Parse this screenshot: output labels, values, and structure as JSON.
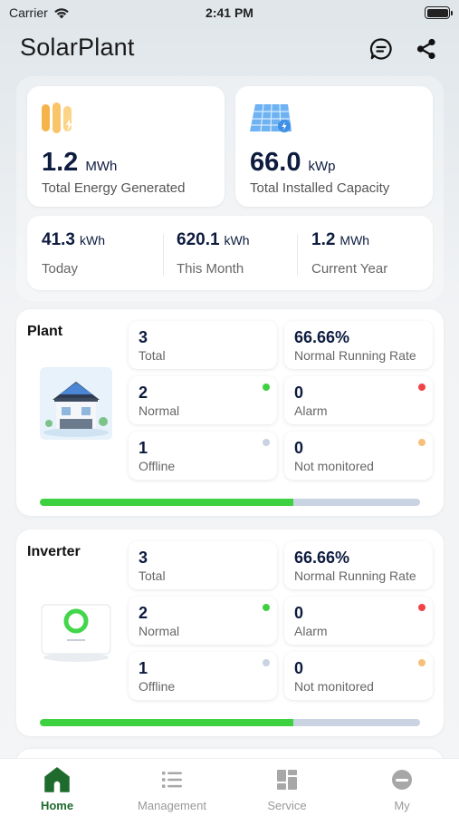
{
  "status_bar": {
    "carrier": "Carrier",
    "time": "2:41 PM"
  },
  "header": {
    "title": "SolarPlant"
  },
  "summary": {
    "energy": {
      "value": "1.2",
      "unit": "MWh",
      "label": "Total Energy Generated"
    },
    "capacity": {
      "value": "66.0",
      "unit": "kWp",
      "label": "Total Installed Capacity"
    },
    "periods": [
      {
        "value": "41.3",
        "unit": "kWh",
        "label": "Today"
      },
      {
        "value": "620.1",
        "unit": "kWh",
        "label": "This Month"
      },
      {
        "value": "1.2",
        "unit": "MWh",
        "label": "Current Year"
      }
    ]
  },
  "plant": {
    "title": "Plant",
    "total": {
      "value": "3",
      "label": "Total"
    },
    "rate": {
      "value": "66.66%",
      "label": "Normal Running Rate"
    },
    "normal": {
      "value": "2",
      "label": "Normal"
    },
    "alarm": {
      "value": "0",
      "label": "Alarm"
    },
    "offline": {
      "value": "1",
      "label": "Offline"
    },
    "not_monitored": {
      "value": "0",
      "label": "Not monitored"
    },
    "running_fraction": 0.6666
  },
  "inverter": {
    "title": "Inverter",
    "total": {
      "value": "3",
      "label": "Total"
    },
    "rate": {
      "value": "66.66%",
      "label": "Normal Running Rate"
    },
    "normal": {
      "value": "2",
      "label": "Normal"
    },
    "alarm": {
      "value": "0",
      "label": "Alarm"
    },
    "offline": {
      "value": "1",
      "label": "Offline"
    },
    "not_monitored": {
      "value": "0",
      "label": "Not monitored"
    },
    "running_fraction": 0.6666
  },
  "colors": {
    "normal": "#3ed13f",
    "alarm": "#f04444",
    "offline": "#c9d3e2",
    "not_monitored": "#f6c07a",
    "nav_active": "#1f6b2e"
  },
  "nav": {
    "items": [
      {
        "label": "Home",
        "icon": "home-icon",
        "active": true
      },
      {
        "label": "Management",
        "icon": "list-icon",
        "active": false
      },
      {
        "label": "Service",
        "icon": "grid-icon",
        "active": false
      },
      {
        "label": "My",
        "icon": "profile-icon",
        "active": false
      }
    ]
  }
}
